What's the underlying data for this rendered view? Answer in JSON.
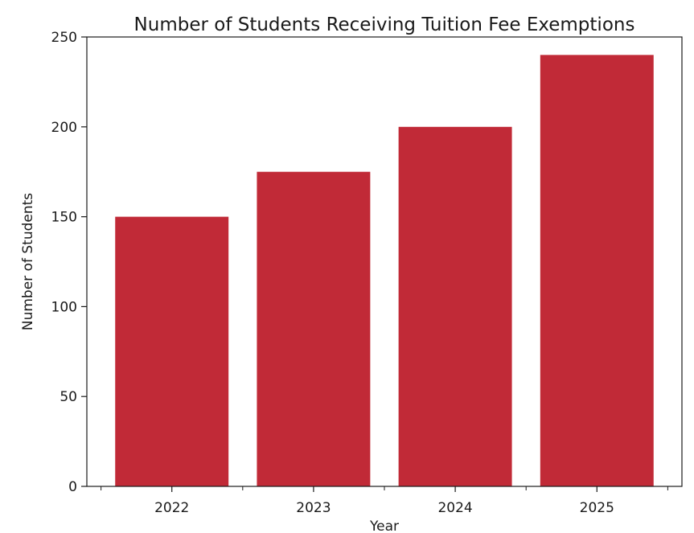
{
  "chart_data": {
    "type": "bar",
    "title": "Number of Students Receiving Tuition Fee Exemptions",
    "xlabel": "Year",
    "ylabel": "Number of Students",
    "categories": [
      "2022",
      "2023",
      "2024",
      "2025"
    ],
    "values": [
      150,
      175,
      200,
      240
    ],
    "ylim": [
      0,
      250
    ],
    "yticks": [
      0,
      50,
      100,
      150,
      200,
      250
    ],
    "grid": false,
    "legend": "none",
    "bar_color": "#c12a37"
  }
}
